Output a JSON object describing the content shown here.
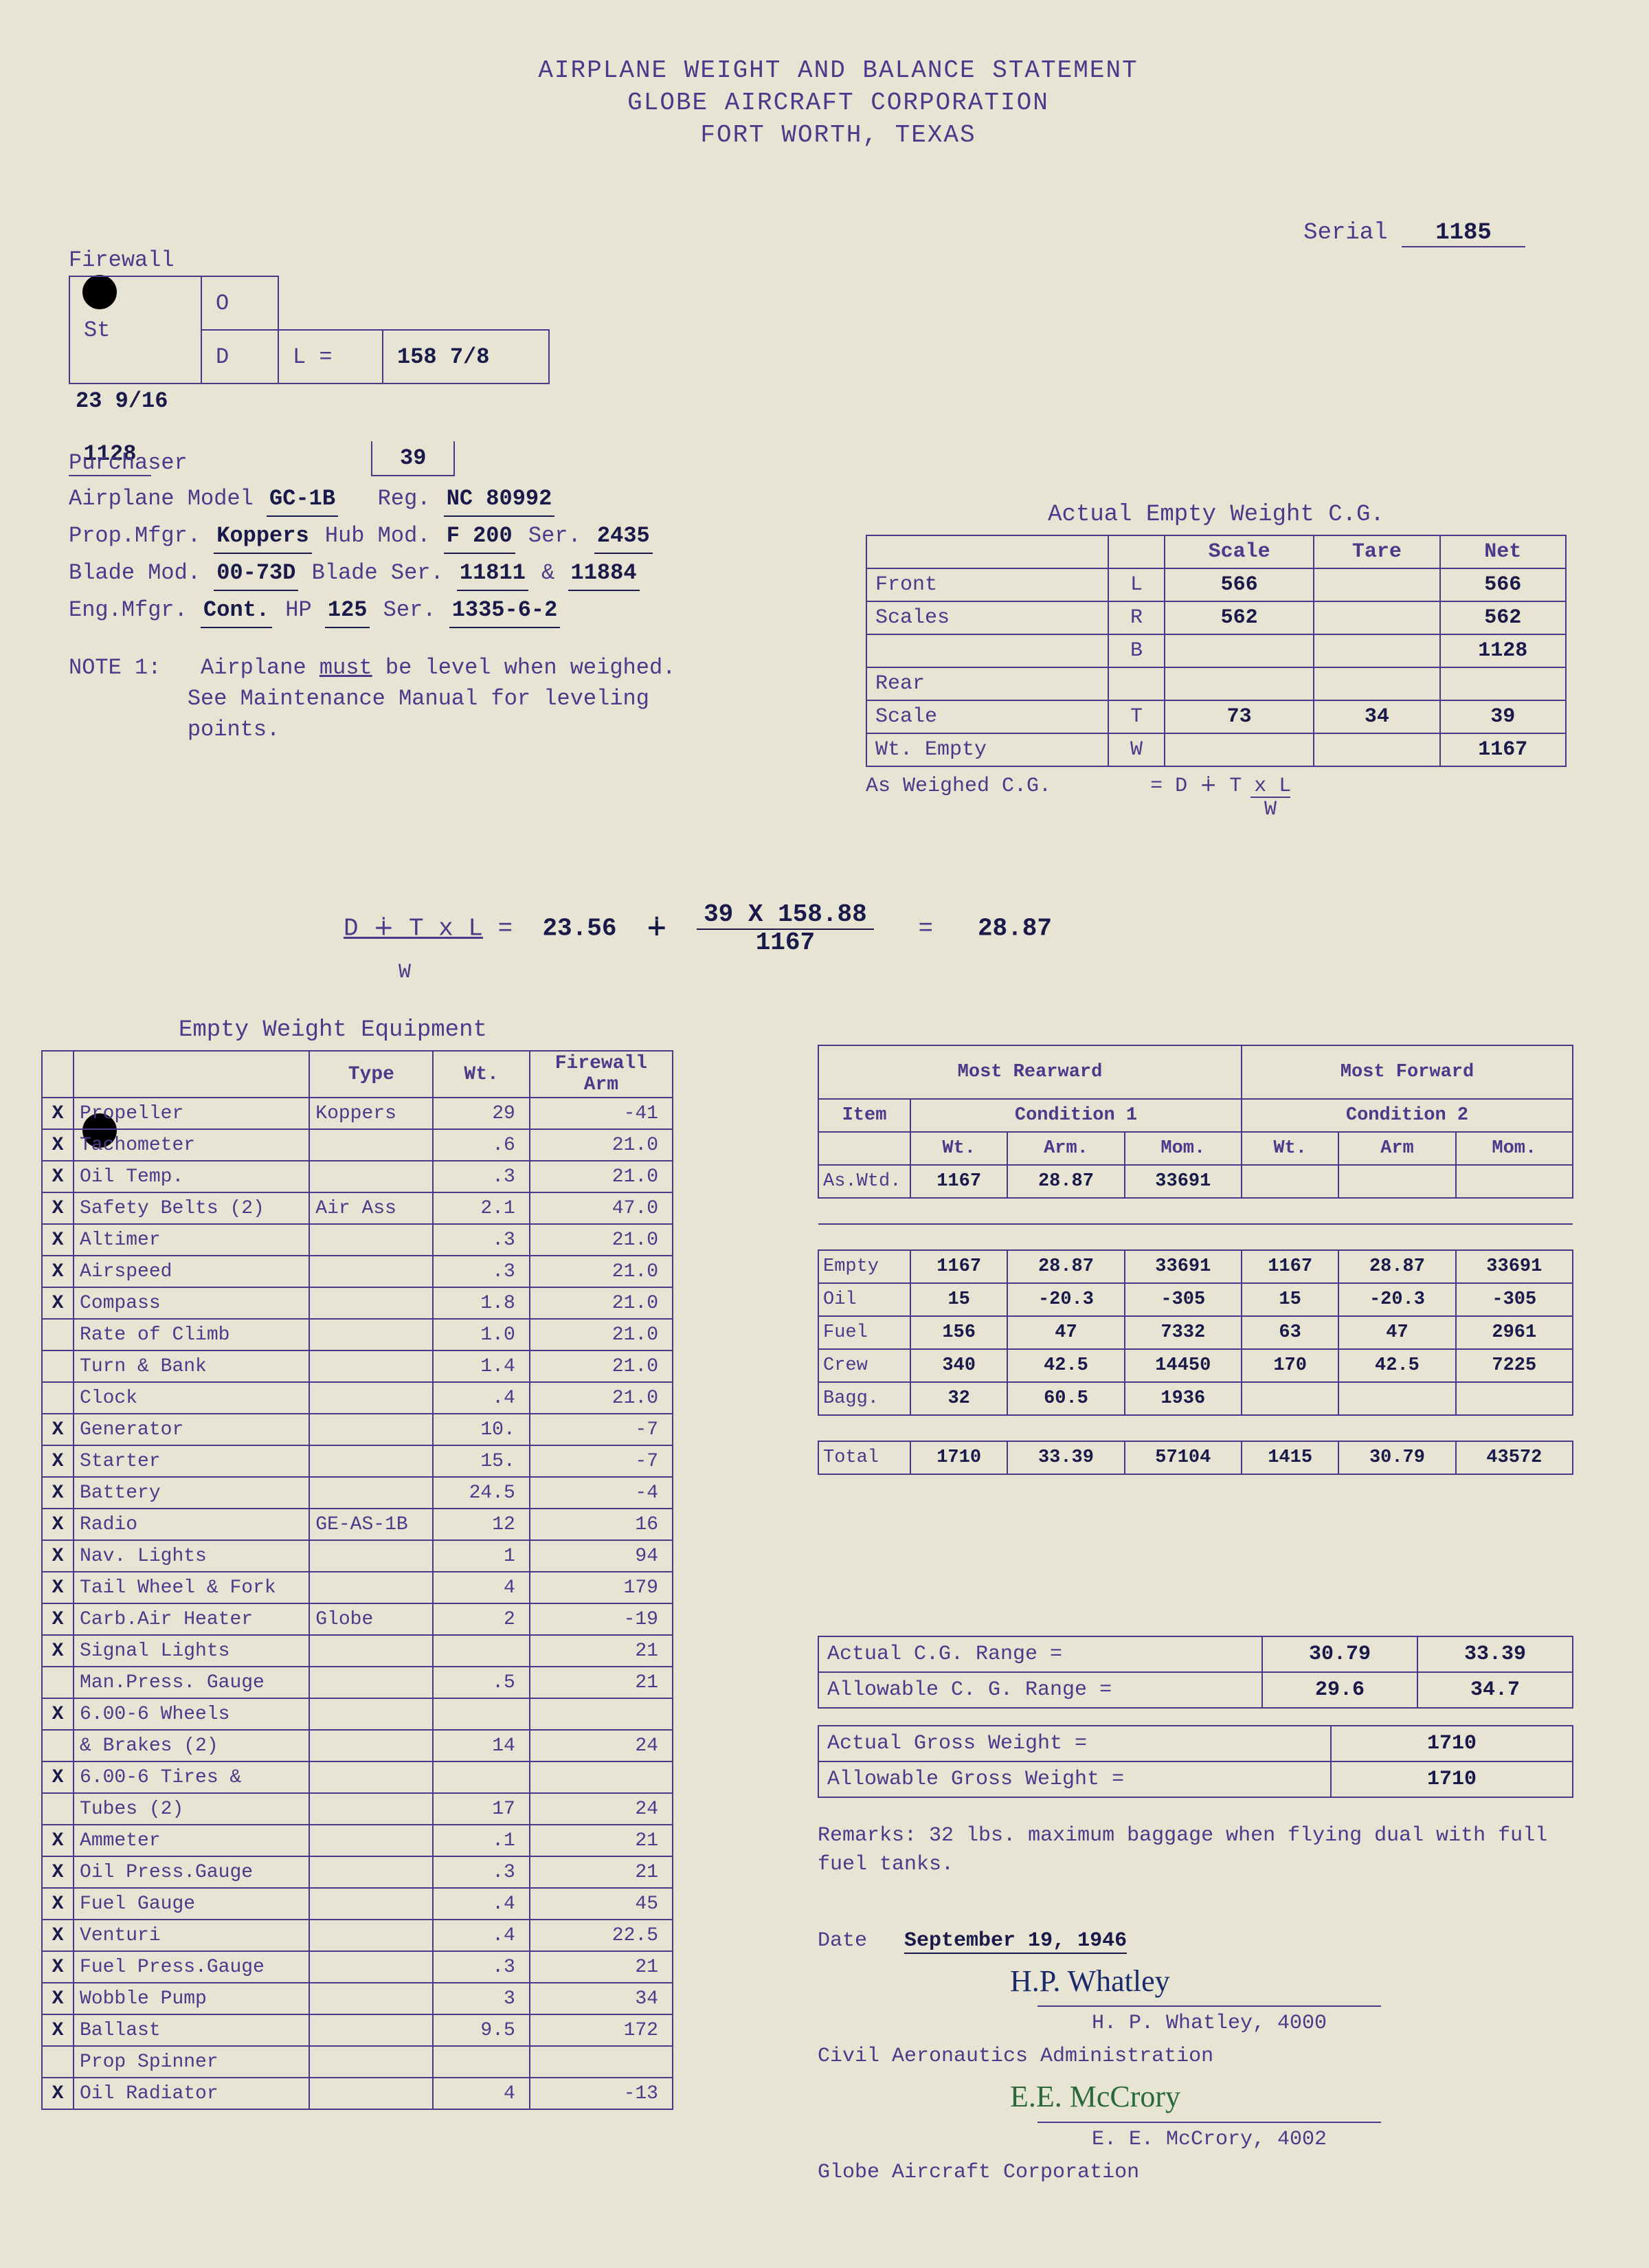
{
  "header": {
    "line1": "AIRPLANE WEIGHT AND BALANCE STATEMENT",
    "line2": "GLOBE AIRCRAFT CORPORATION",
    "line3": "FORT WORTH, TEXAS"
  },
  "serial": {
    "label": "Serial",
    "value": "1185"
  },
  "dimensions": {
    "firewall_label": "Firewall",
    "st_label": "St",
    "o_label": "O",
    "d_label": "D",
    "l_eq": "L =",
    "st_value": "23 9/16",
    "l_value": "158 7/8",
    "bottom_left": "1128",
    "bottom_right": "39"
  },
  "info": {
    "purchaser_label": "Purchaser",
    "airplane_model_label": "Airplane Model",
    "airplane_model": "GC-1B",
    "reg_label": "Reg.",
    "reg": "NC 80992",
    "prop_mfgr_label": "Prop.Mfgr.",
    "prop_mfgr": "Koppers",
    "hub_mod_label": "Hub Mod.",
    "hub_mod": "F 200",
    "ser_label": "Ser.",
    "hub_ser": "2435",
    "blade_mod_label": "Blade Mod.",
    "blade_mod": "00-73D",
    "blade_ser_label": "Blade Ser.",
    "blade_ser1": "11811",
    "amp": "&",
    "blade_ser2": "11884",
    "eng_mfgr_label": "Eng.Mfgr.",
    "eng_mfgr": "Cont.",
    "hp_label": "HP",
    "hp": "125",
    "eng_ser": "1335-6-2"
  },
  "note": {
    "label": "NOTE 1:",
    "text1": "Airplane",
    "must": "must",
    "text2": "be level when weighed.",
    "text3": "See Maintenance Manual for leveling",
    "text4": "points."
  },
  "weight_cg": {
    "caption": "Actual Empty Weight C.G.",
    "cols": [
      "",
      "",
      "Scale",
      "Tare",
      "Net"
    ],
    "rows": [
      [
        "Front",
        "L",
        "566",
        "",
        "566"
      ],
      [
        "Scales",
        "R",
        "562",
        "",
        "562"
      ],
      [
        "",
        "B",
        "",
        "",
        "1128"
      ],
      [
        "Rear",
        "",
        "",
        "",
        ""
      ],
      [
        "Scale",
        "T",
        "73",
        "34",
        "39"
      ],
      [
        "Wt. Empty",
        "W",
        "",
        "",
        "1167"
      ]
    ],
    "as_weighed": "As Weighed C.G.",
    "formula_eq": "= D ∔ T x L",
    "formula_denom": "W"
  },
  "formula": {
    "lhs": "D ∔ T x L",
    "denom": "W",
    "eq": "=",
    "d_val": "23.56",
    "plus": "∔",
    "num": "39 X 158.88",
    "den": "1167",
    "result": "28.87"
  },
  "equipment": {
    "title": "Empty Weight Equipment",
    "cols": [
      "",
      "",
      "Type",
      "Wt.",
      "Firewall Arm"
    ],
    "rows": [
      [
        "X",
        "Propeller",
        "Koppers",
        "29",
        "-41"
      ],
      [
        "X",
        "Tachometer",
        "",
        ".6",
        "21.0"
      ],
      [
        "X",
        "Oil Temp.",
        "",
        ".3",
        "21.0"
      ],
      [
        "X",
        "Safety Belts (2)",
        "Air Ass",
        "2.1",
        "47.0"
      ],
      [
        "X",
        "Altimer",
        "",
        ".3",
        "21.0"
      ],
      [
        "X",
        "Airspeed",
        "",
        ".3",
        "21.0"
      ],
      [
        "X",
        "Compass",
        "",
        "1.8",
        "21.0"
      ],
      [
        "",
        "Rate of Climb",
        "",
        "1.0",
        "21.0"
      ],
      [
        "",
        "Turn & Bank",
        "",
        "1.4",
        "21.0"
      ],
      [
        "",
        "Clock",
        "",
        ".4",
        "21.0"
      ],
      [
        "X",
        "Generator",
        "",
        "10.",
        "-7"
      ],
      [
        "X",
        "Starter",
        "",
        "15.",
        "-7"
      ],
      [
        "X",
        "Battery",
        "",
        "24.5",
        "-4"
      ],
      [
        "X",
        "Radio",
        "GE-AS-1B",
        "12",
        "16"
      ],
      [
        "X",
        "Nav. Lights",
        "",
        "1",
        "94"
      ],
      [
        "X",
        "Tail Wheel & Fork",
        "",
        "4",
        "179"
      ],
      [
        "X",
        "Carb.Air Heater",
        "Globe",
        "2",
        "-19"
      ],
      [
        "X",
        "Signal Lights",
        "",
        "",
        "21"
      ],
      [
        "",
        "Man.Press. Gauge",
        "",
        ".5",
        "21"
      ],
      [
        "X",
        "6.00-6 Wheels",
        "",
        "",
        ""
      ],
      [
        "",
        "& Brakes (2)",
        "",
        "14",
        "24"
      ],
      [
        "X",
        "6.00-6 Tires &",
        "",
        "",
        ""
      ],
      [
        "",
        "Tubes (2)",
        "",
        "17",
        "24"
      ],
      [
        "X",
        "Ammeter",
        "",
        ".1",
        "21"
      ],
      [
        "X",
        "Oil Press.Gauge",
        "",
        ".3",
        "21"
      ],
      [
        "X",
        "Fuel Gauge",
        "",
        ".4",
        "45"
      ],
      [
        "X",
        "Venturi",
        "",
        ".4",
        "22.5"
      ],
      [
        "X",
        "Fuel Press.Gauge",
        "",
        ".3",
        "21"
      ],
      [
        "X",
        "Wobble Pump",
        "",
        "3",
        "34"
      ],
      [
        "X",
        "Ballast",
        "",
        "9.5",
        "172"
      ],
      [
        "",
        "Prop Spinner",
        "",
        "",
        ""
      ],
      [
        "X",
        "Oil Radiator",
        "",
        "4",
        "-13"
      ]
    ]
  },
  "conditions": {
    "rear_header": "Most Rearward",
    "fwd_header": "Most Forward",
    "item_label": "Item",
    "cond1": "Condition 1",
    "cond2": "Condition 2",
    "sub_cols": [
      "Wt.",
      "Arm.",
      "Mom.",
      "Wt.",
      "Arm",
      "Mom."
    ],
    "aswtd": [
      "As.Wtd.",
      "1167",
      "28.87",
      "33691",
      "",
      "",
      ""
    ],
    "rows": [
      [
        "Empty",
        "1167",
        "28.87",
        "33691",
        "1167",
        "28.87",
        "33691"
      ],
      [
        "Oil",
        "15",
        "-20.3",
        "-305",
        "15",
        "-20.3",
        "-305"
      ],
      [
        "Fuel",
        "156",
        "47",
        "7332",
        "63",
        "47",
        "2961"
      ],
      [
        "Crew",
        "340",
        "42.5",
        "14450",
        "170",
        "42.5",
        "7225"
      ],
      [
        "Bagg.",
        "32",
        "60.5",
        "1936",
        "",
        "",
        ""
      ]
    ],
    "total": [
      "Total",
      "1710",
      "33.39",
      "57104",
      "1415",
      "30.79",
      "43572"
    ]
  },
  "ranges": {
    "rows": [
      [
        "Actual C.G. Range =",
        "30.79",
        "33.39"
      ],
      [
        "Allowable C. G. Range =",
        "29.6",
        "34.7"
      ]
    ],
    "gross": [
      [
        "Actual Gross Weight  =",
        "1710"
      ],
      [
        "Allowable Gross Weight =",
        "1710"
      ]
    ]
  },
  "remarks": {
    "label": "Remarks:",
    "text": "32 lbs. maximum baggage when flying dual with full fuel tanks."
  },
  "sigs": {
    "date_label": "Date",
    "date_val": "September 19, 1946",
    "sig1_script": "H.P. Whatley",
    "sig1_name": "H. P. Whatley, 4000",
    "org1": "Civil Aeronautics Administration",
    "sig2_script": "E.E. McCrory",
    "sig2_name": "E. E. McCrory, 4002",
    "org2": "Globe Aircraft Corporation"
  }
}
